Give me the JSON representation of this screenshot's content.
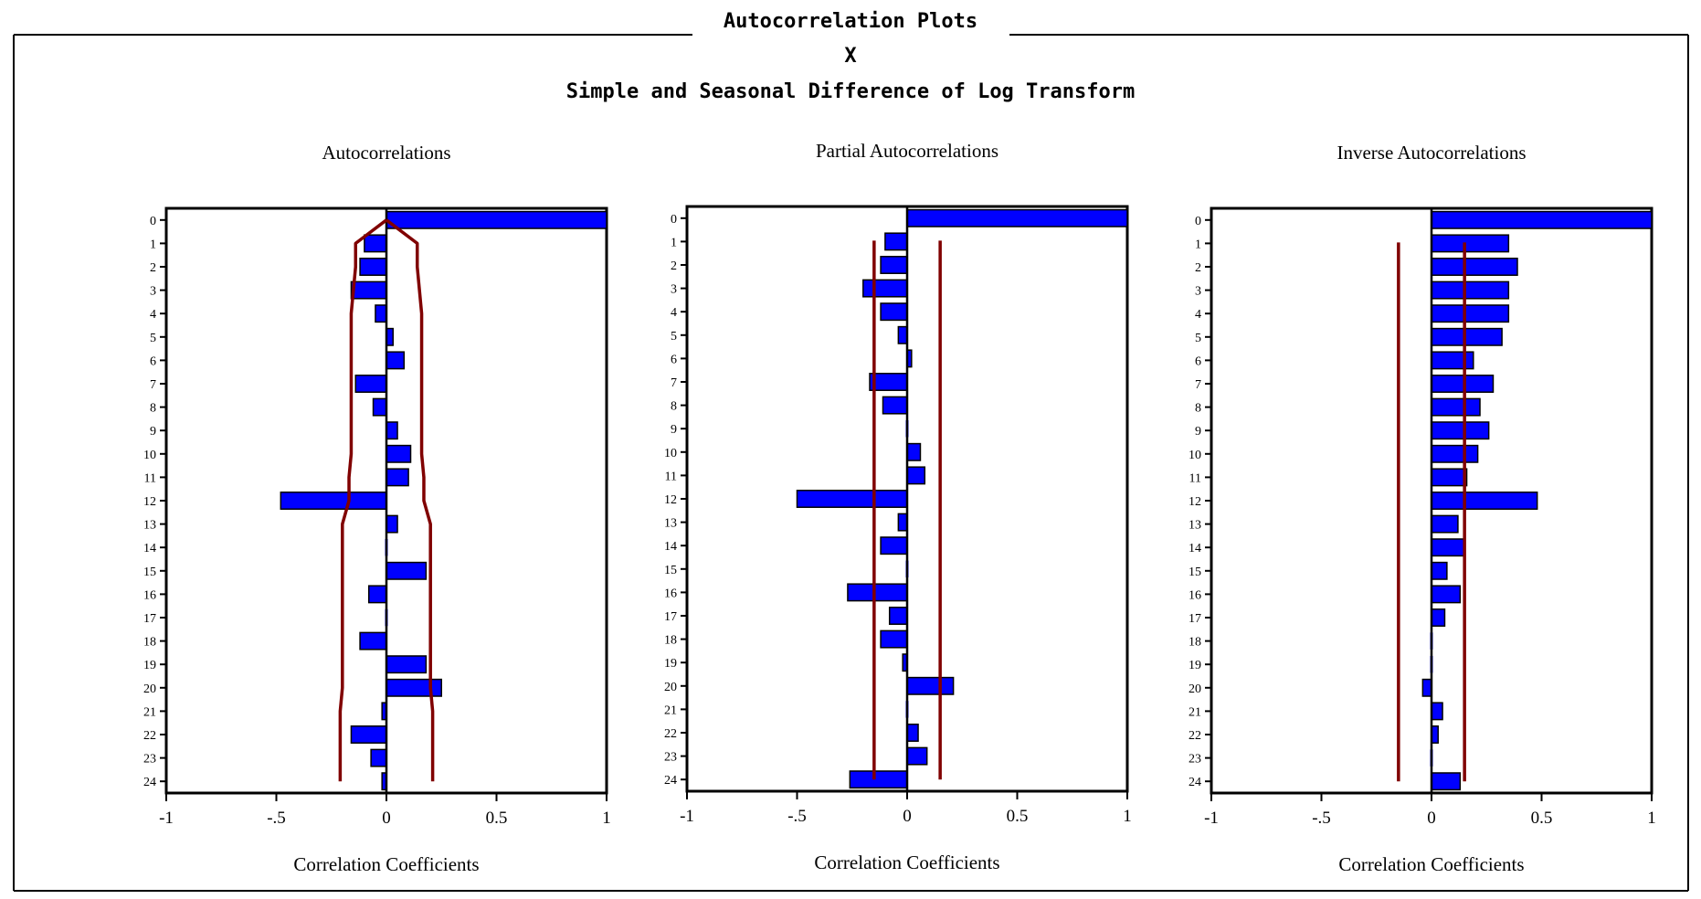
{
  "header": {
    "title": "Autocorrelation Plots",
    "variable": "X",
    "subtitle": "Simple and Seasonal Difference of Log Transform"
  },
  "colors": {
    "bar_fill": "#0000ff",
    "bar_stroke": "#000000",
    "band": "#800000",
    "frame": "#000000"
  },
  "chart_data": [
    {
      "type": "bar",
      "orientation": "horizontal",
      "title": "Autocorrelations",
      "xlabel": "Correlation Coefficients",
      "ylabel": "",
      "xlim": [
        -1,
        1
      ],
      "x_ticks": [
        -1,
        -0.5,
        0,
        0.5,
        1
      ],
      "x_tick_labels": [
        "-1",
        "-.5",
        "0",
        "0.5",
        "1"
      ],
      "categories": [
        "0",
        "1",
        "2",
        "3",
        "4",
        "5",
        "6",
        "7",
        "8",
        "9",
        "10",
        "11",
        "12",
        "13",
        "14",
        "15",
        "16",
        "17",
        "18",
        "19",
        "20",
        "21",
        "22",
        "23",
        "24"
      ],
      "values": [
        1.0,
        -0.1,
        -0.12,
        -0.16,
        -0.05,
        0.03,
        0.08,
        -0.14,
        -0.06,
        0.05,
        0.11,
        0.1,
        -0.48,
        0.05,
        0.01,
        0.18,
        -0.08,
        -0.01,
        -0.12,
        0.18,
        0.25,
        -0.02,
        -0.16,
        -0.07,
        -0.02
      ],
      "band_type": "envelope",
      "band_upper": [
        0.0,
        0.14,
        0.14,
        0.15,
        0.16,
        0.16,
        0.16,
        0.16,
        0.16,
        0.16,
        0.16,
        0.17,
        0.17,
        0.2,
        0.2,
        0.2,
        0.2,
        0.2,
        0.2,
        0.2,
        0.2,
        0.21,
        0.21,
        0.21,
        0.21
      ],
      "band_lower": [
        0.0,
        -0.14,
        -0.14,
        -0.15,
        -0.16,
        -0.16,
        -0.16,
        -0.16,
        -0.16,
        -0.16,
        -0.16,
        -0.17,
        -0.17,
        -0.2,
        -0.2,
        -0.2,
        -0.2,
        -0.2,
        -0.2,
        -0.2,
        -0.2,
        -0.21,
        -0.21,
        -0.21,
        -0.21
      ]
    },
    {
      "type": "bar",
      "orientation": "horizontal",
      "title": "Partial Autocorrelations",
      "xlabel": "Correlation Coefficients",
      "ylabel": "",
      "xlim": [
        -1,
        1
      ],
      "x_ticks": [
        -1,
        -0.5,
        0,
        0.5,
        1
      ],
      "x_tick_labels": [
        "-1",
        "-.5",
        "0",
        "0.5",
        "1"
      ],
      "categories": [
        "0",
        "1",
        "2",
        "3",
        "4",
        "5",
        "6",
        "7",
        "8",
        "9",
        "10",
        "11",
        "12",
        "13",
        "14",
        "15",
        "16",
        "17",
        "18",
        "19",
        "20",
        "21",
        "22",
        "23",
        "24"
      ],
      "values": [
        1.0,
        -0.1,
        -0.12,
        -0.2,
        -0.12,
        -0.04,
        0.02,
        -0.17,
        -0.11,
        0.0,
        0.06,
        0.08,
        -0.5,
        -0.04,
        -0.12,
        -0.01,
        -0.27,
        -0.08,
        -0.12,
        -0.02,
        0.21,
        -0.01,
        0.05,
        0.09,
        -0.26
      ],
      "band_type": "constant",
      "band_upper_value": 0.15,
      "band_lower_value": -0.15
    },
    {
      "type": "bar",
      "orientation": "horizontal",
      "title": "Inverse Autocorrelations",
      "xlabel": "Correlation Coefficients",
      "ylabel": "",
      "xlim": [
        -1,
        1
      ],
      "x_ticks": [
        -1,
        -0.5,
        0,
        0.5,
        1
      ],
      "x_tick_labels": [
        "-1",
        "-.5",
        "0",
        "0.5",
        "1"
      ],
      "categories": [
        "0",
        "1",
        "2",
        "3",
        "4",
        "5",
        "6",
        "7",
        "8",
        "9",
        "10",
        "11",
        "12",
        "13",
        "14",
        "15",
        "16",
        "17",
        "18",
        "19",
        "20",
        "21",
        "22",
        "23",
        "24"
      ],
      "values": [
        1.0,
        0.35,
        0.39,
        0.35,
        0.35,
        0.32,
        0.19,
        0.28,
        0.22,
        0.26,
        0.21,
        0.16,
        0.48,
        0.12,
        0.15,
        0.07,
        0.13,
        0.06,
        0.01,
        0.01,
        -0.04,
        0.05,
        0.03,
        0.01,
        0.13
      ],
      "band_type": "constant",
      "band_upper_value": 0.15,
      "band_lower_value": -0.15
    }
  ]
}
